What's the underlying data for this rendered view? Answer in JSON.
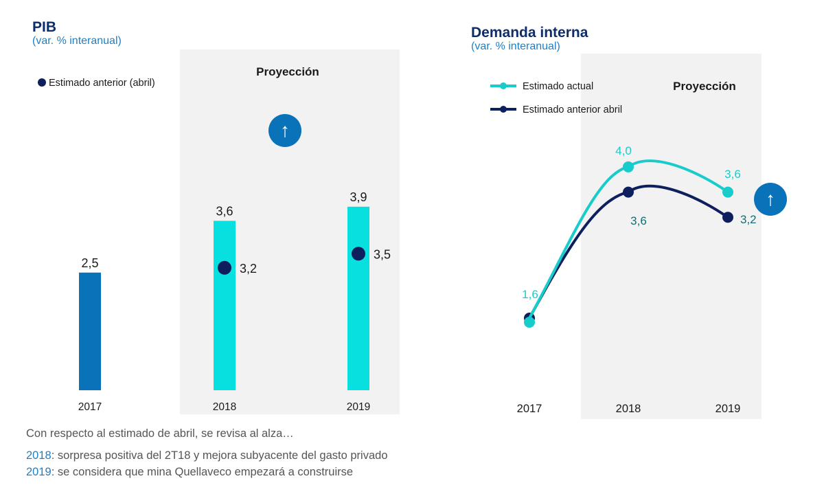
{
  "chart_data": [
    {
      "type": "bar",
      "title": "PIB",
      "subtitle": "(var. % interanual)",
      "categories": [
        "2017",
        "2018",
        "2019"
      ],
      "series": [
        {
          "name": "Estimado actual",
          "values": [
            2.5,
            3.6,
            3.9
          ],
          "labels": [
            "2,5",
            "3,6",
            "3,9"
          ]
        },
        {
          "name": "Estimado anterior (abril)",
          "values": [
            null,
            3.2,
            3.5
          ],
          "labels": [
            "",
            "3,2",
            "3,5"
          ]
        }
      ],
      "legend": [
        "Estimado anterior (abril)"
      ],
      "projection_label": "Proyección",
      "projection_categories": [
        "2018",
        "2019"
      ],
      "annotation": "↑",
      "ylim": [
        0,
        4.5
      ],
      "colors": {
        "actual_2017": "#0a72b9",
        "actual_proj": "#08e0e0",
        "anterior": "#0d1f5c",
        "shade": "#f2f2f2",
        "arrow_bg": "#0a72b9"
      }
    },
    {
      "type": "line",
      "title": "Demanda interna",
      "subtitle": "(var. % interanual)",
      "categories": [
        "2017",
        "2018",
        "2019"
      ],
      "series": [
        {
          "name": "Estimado actual",
          "values": [
            1.6,
            4.0,
            3.6
          ],
          "labels": [
            "1,6",
            "4,0",
            "3,6"
          ],
          "color": "#19cccc"
        },
        {
          "name": "Estimado anterior abril",
          "values": [
            1.6,
            3.6,
            3.2
          ],
          "labels": [
            "",
            "3,6",
            "3,2"
          ],
          "color": "#0d1f5c"
        }
      ],
      "projection_label": "Proyección",
      "projection_categories": [
        "2018",
        "2019"
      ],
      "annotation": "↑",
      "colors": {
        "label_actual": "#19cccc",
        "label_anterior": "#0f6f74",
        "shade": "#f2f2f2",
        "arrow_bg": "#0a72b9"
      }
    }
  ],
  "notes": {
    "line1": "Con respecto al estimado de abril, se revisa al alza…",
    "line2_year": "2018",
    "line2_text": ": sorpresa positiva del 2T18 y mejora subyacente del gasto privado",
    "line3_year": "2019",
    "line3_text": ": se considera que mina Quellaveco empezará a construirse"
  }
}
